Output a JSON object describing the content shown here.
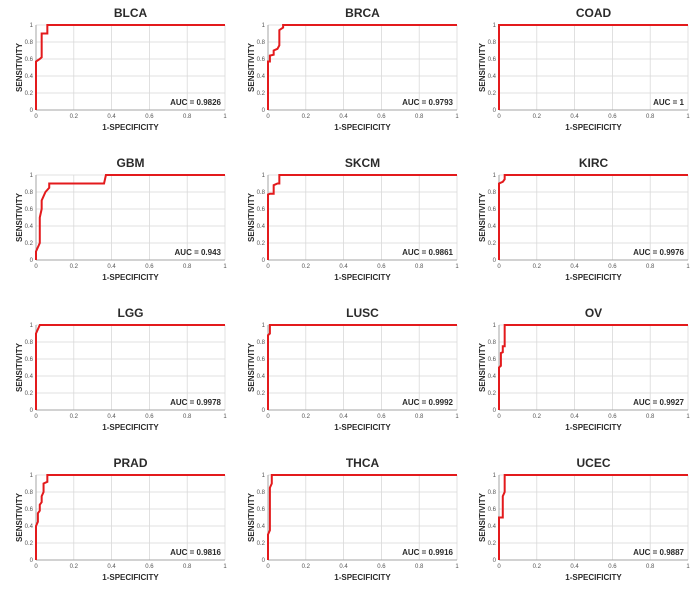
{
  "chart_data": [
    {
      "type": "line",
      "title": "BLCA",
      "xlabel": "1-SPECIFICITY",
      "ylabel": "SENSITIVITY",
      "xlim": [
        0,
        1
      ],
      "ylim": [
        0,
        1
      ],
      "grid": true,
      "x_ticks": [
        "0",
        "0.2",
        "0.4",
        "0.6",
        "0.8",
        "1"
      ],
      "y_ticks": [
        "0",
        "0.2",
        "0.4",
        "0.6",
        "0.8",
        "1"
      ],
      "annotation": "AUC = 0.9826",
      "line_color": "#e31a1c",
      "series": [
        {
          "x": [
            0,
            0,
            0.02,
            0.03,
            0.03,
            0.06,
            0.06,
            1
          ],
          "y": [
            0,
            0.57,
            0.6,
            0.62,
            0.9,
            0.9,
            1,
            1
          ]
        }
      ]
    },
    {
      "type": "line",
      "title": "BRCA",
      "xlabel": "1-SPECIFICITY",
      "ylabel": "SENSITIVITY",
      "xlim": [
        0,
        1
      ],
      "ylim": [
        0,
        1
      ],
      "grid": true,
      "x_ticks": [
        "0",
        "0.2",
        "0.4",
        "0.6",
        "0.8",
        "1"
      ],
      "y_ticks": [
        "0",
        "0.2",
        "0.4",
        "0.6",
        "0.8",
        "1"
      ],
      "annotation": "AUC = 0.9793",
      "line_color": "#e31a1c",
      "series": [
        {
          "x": [
            0,
            0,
            0.01,
            0.01,
            0.03,
            0.03,
            0.05,
            0.06,
            0.06,
            0.08,
            0.08,
            1
          ],
          "y": [
            0,
            0.57,
            0.57,
            0.64,
            0.65,
            0.7,
            0.72,
            0.76,
            0.94,
            0.97,
            1,
            1
          ]
        }
      ]
    },
    {
      "type": "line",
      "title": "COAD",
      "xlabel": "1-SPECIFICITY",
      "ylabel": "SENSITIVITY",
      "xlim": [
        0,
        1
      ],
      "ylim": [
        0,
        1
      ],
      "grid": true,
      "x_ticks": [
        "0",
        "0.2",
        "0.4",
        "0.6",
        "0.8",
        "1"
      ],
      "y_ticks": [
        "0",
        "0.2",
        "0.4",
        "0.6",
        "0.8",
        "1"
      ],
      "annotation": "AUC = 1",
      "line_color": "#e31a1c",
      "series": [
        {
          "x": [
            0,
            0,
            1
          ],
          "y": [
            0,
            1,
            1
          ]
        }
      ]
    },
    {
      "type": "line",
      "title": "GBM",
      "xlabel": "1-SPECIFICITY",
      "ylabel": "SENSITIVITY",
      "xlim": [
        0,
        1
      ],
      "ylim": [
        0,
        1
      ],
      "grid": true,
      "x_ticks": [
        "0",
        "0.2",
        "0.4",
        "0.6",
        "0.8",
        "1"
      ],
      "y_ticks": [
        "0",
        "0.2",
        "0.4",
        "0.6",
        "0.8",
        "1"
      ],
      "annotation": "AUC = 0.943",
      "line_color": "#e31a1c",
      "series": [
        {
          "x": [
            0,
            0,
            0.02,
            0.02,
            0.03,
            0.03,
            0.05,
            0.07,
            0.07,
            0.36,
            0.37,
            1
          ],
          "y": [
            0,
            0.1,
            0.2,
            0.5,
            0.6,
            0.7,
            0.8,
            0.85,
            0.9,
            0.9,
            1,
            1
          ]
        }
      ]
    },
    {
      "type": "line",
      "title": "SKCM",
      "xlabel": "1-SPECIFICITY",
      "ylabel": "SENSITIVITY",
      "xlim": [
        0,
        1
      ],
      "ylim": [
        0,
        1
      ],
      "grid": true,
      "x_ticks": [
        "0",
        "0.2",
        "0.4",
        "0.6",
        "0.8",
        "1"
      ],
      "y_ticks": [
        "0",
        "0.2",
        "0.4",
        "0.6",
        "0.8",
        "1"
      ],
      "annotation": "AUC = 0.9861",
      "line_color": "#e31a1c",
      "series": [
        {
          "x": [
            0,
            0,
            0.01,
            0.03,
            0.03,
            0.05,
            0.06,
            0.06,
            1
          ],
          "y": [
            0,
            0.77,
            0.78,
            0.78,
            0.88,
            0.9,
            0.9,
            1,
            1
          ]
        }
      ]
    },
    {
      "type": "line",
      "title": "KIRC",
      "xlabel": "1-SPECIFICITY",
      "ylabel": "SENSITIVITY",
      "xlim": [
        0,
        1
      ],
      "ylim": [
        0,
        1
      ],
      "grid": true,
      "x_ticks": [
        "0",
        "0.2",
        "0.4",
        "0.6",
        "0.8",
        "1"
      ],
      "y_ticks": [
        "0",
        "0.2",
        "0.4",
        "0.6",
        "0.8",
        "1"
      ],
      "annotation": "AUC = 0.9976",
      "line_color": "#e31a1c",
      "series": [
        {
          "x": [
            0,
            0,
            0.02,
            0.03,
            0.03,
            1
          ],
          "y": [
            0,
            0.9,
            0.92,
            0.95,
            1,
            1
          ]
        }
      ]
    },
    {
      "type": "line",
      "title": "LGG",
      "xlabel": "1-SPECIFICITY",
      "ylabel": "SENSITIVITY",
      "xlim": [
        0,
        1
      ],
      "ylim": [
        0,
        1
      ],
      "grid": true,
      "x_ticks": [
        "0",
        "0.2",
        "0.4",
        "0.6",
        "0.8",
        "1"
      ],
      "y_ticks": [
        "0",
        "0.2",
        "0.4",
        "0.6",
        "0.8",
        "1"
      ],
      "annotation": "AUC = 0.9978",
      "line_color": "#e31a1c",
      "series": [
        {
          "x": [
            0,
            0,
            0.01,
            0.02,
            1
          ],
          "y": [
            0,
            0.9,
            0.95,
            1,
            1
          ]
        }
      ]
    },
    {
      "type": "line",
      "title": "LUSC",
      "xlabel": "1-SPECIFICITY",
      "ylabel": "SENSITIVITY",
      "xlim": [
        0,
        1
      ],
      "ylim": [
        0,
        1
      ],
      "grid": true,
      "x_ticks": [
        "0",
        "0.2",
        "0.4",
        "0.6",
        "0.8",
        "1"
      ],
      "y_ticks": [
        "0",
        "0.2",
        "0.4",
        "0.6",
        "0.8",
        "1"
      ],
      "annotation": "AUC = 0.9992",
      "line_color": "#e31a1c",
      "series": [
        {
          "x": [
            0,
            0,
            0.01,
            0.01,
            1
          ],
          "y": [
            0,
            0.88,
            0.9,
            1,
            1
          ]
        }
      ]
    },
    {
      "type": "line",
      "title": "OV",
      "xlabel": "1-SPECIFICITY",
      "ylabel": "SENSITIVITY",
      "xlim": [
        0,
        1
      ],
      "ylim": [
        0,
        1
      ],
      "grid": true,
      "x_ticks": [
        "0",
        "0.2",
        "0.4",
        "0.6",
        "0.8",
        "1"
      ],
      "y_ticks": [
        "0",
        "0.2",
        "0.4",
        "0.6",
        "0.8",
        "1"
      ],
      "annotation": "AUC = 0.9927",
      "line_color": "#e31a1c",
      "series": [
        {
          "x": [
            0,
            0,
            0.01,
            0.01,
            0.02,
            0.02,
            0.03,
            0.03,
            1
          ],
          "y": [
            0,
            0.5,
            0.52,
            0.67,
            0.68,
            0.75,
            0.75,
            1,
            1
          ]
        }
      ]
    },
    {
      "type": "line",
      "title": "PRAD",
      "xlabel": "1-SPECIFICITY",
      "ylabel": "SENSITIVITY",
      "xlim": [
        0,
        1
      ],
      "ylim": [
        0,
        1
      ],
      "grid": true,
      "x_ticks": [
        "0",
        "0.2",
        "0.4",
        "0.6",
        "0.8",
        "1"
      ],
      "y_ticks": [
        "0",
        "0.2",
        "0.4",
        "0.6",
        "0.8",
        "1"
      ],
      "annotation": "AUC = 0.9816",
      "line_color": "#e31a1c",
      "series": [
        {
          "x": [
            0,
            0,
            0.01,
            0.01,
            0.02,
            0.02,
            0.03,
            0.03,
            0.04,
            0.04,
            0.06,
            0.06,
            1
          ],
          "y": [
            0,
            0.4,
            0.45,
            0.55,
            0.58,
            0.65,
            0.68,
            0.75,
            0.8,
            0.9,
            0.92,
            1,
            1
          ]
        }
      ]
    },
    {
      "type": "line",
      "title": "THCA",
      "xlabel": "1-SPECIFICITY",
      "ylabel": "SENSITIVITY",
      "xlim": [
        0,
        1
      ],
      "ylim": [
        0,
        1
      ],
      "grid": true,
      "x_ticks": [
        "0",
        "0.2",
        "0.4",
        "0.6",
        "0.8",
        "1"
      ],
      "y_ticks": [
        "0",
        "0.2",
        "0.4",
        "0.6",
        "0.8",
        "1"
      ],
      "annotation": "AUC = 0.9916",
      "line_color": "#e31a1c",
      "series": [
        {
          "x": [
            0,
            0,
            0.01,
            0.01,
            0.02,
            0.02,
            1
          ],
          "y": [
            0,
            0.3,
            0.35,
            0.85,
            0.9,
            1,
            1
          ]
        }
      ]
    },
    {
      "type": "line",
      "title": "UCEC",
      "xlabel": "1-SPECIFICITY",
      "ylabel": "SENSITIVITY",
      "xlim": [
        0,
        1
      ],
      "ylim": [
        0,
        1
      ],
      "grid": true,
      "x_ticks": [
        "0",
        "0.2",
        "0.4",
        "0.6",
        "0.8",
        "1"
      ],
      "y_ticks": [
        "0",
        "0.2",
        "0.4",
        "0.6",
        "0.8",
        "1"
      ],
      "annotation": "AUC = 0.9887",
      "line_color": "#e31a1c",
      "series": [
        {
          "x": [
            0,
            0,
            0.02,
            0.02,
            0.03,
            0.03,
            1
          ],
          "y": [
            0,
            0.5,
            0.5,
            0.75,
            0.8,
            1,
            1
          ]
        }
      ]
    }
  ]
}
